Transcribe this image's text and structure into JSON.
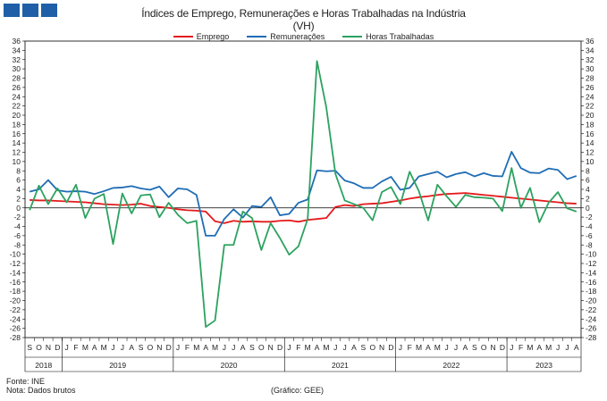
{
  "header": {
    "title_line1": "Índices de Emprego, Remunerações e Horas Trabalhadas na Indústria",
    "title_line2": "(VH)"
  },
  "footer": {
    "source": "Fonte: INE",
    "note": "Nota: Dados brutos",
    "credit": "(Gráfico: GEE)"
  },
  "chart_data": {
    "type": "line",
    "title": "Índices de Emprego, Remunerações e Horas Trabalhadas na Indústria (VH)",
    "xlabel": "",
    "ylabel": "",
    "ylim": [
      -28,
      36
    ],
    "yticks": [
      36,
      34,
      32,
      30,
      28,
      26,
      24,
      22,
      20,
      18,
      16,
      14,
      12,
      10,
      8,
      6,
      4,
      2,
      0,
      -2,
      -4,
      -6,
      -8,
      -10,
      -12,
      -14,
      -16,
      -18,
      -20,
      -22,
      -24,
      -26,
      -28
    ],
    "grid": false,
    "legend_position": "top",
    "x": [
      "S",
      "O",
      "N",
      "D",
      "J",
      "F",
      "M",
      "A",
      "M",
      "J",
      "J",
      "A",
      "S",
      "O",
      "N",
      "D",
      "J",
      "F",
      "M",
      "A",
      "M",
      "J",
      "J",
      "A",
      "S",
      "O",
      "N",
      "D",
      "J",
      "F",
      "M",
      "A",
      "M",
      "J",
      "J",
      "A",
      "S",
      "O",
      "N",
      "D",
      "J",
      "F",
      "M",
      "A",
      "M",
      "J",
      "J",
      "A",
      "S",
      "O",
      "N",
      "D",
      "J",
      "F",
      "M",
      "A",
      "M",
      "J",
      "J",
      "A"
    ],
    "years": [
      {
        "label": "2018",
        "start": 0,
        "end": 3
      },
      {
        "label": "2019",
        "start": 4,
        "end": 15
      },
      {
        "label": "2020",
        "start": 16,
        "end": 27
      },
      {
        "label": "2021",
        "start": 28,
        "end": 39
      },
      {
        "label": "2022",
        "start": 40,
        "end": 51
      },
      {
        "label": "2023",
        "start": 52,
        "end": 59
      }
    ],
    "series": [
      {
        "name": "Emprego",
        "color": "#e41a1c",
        "values": [
          1.7,
          1.6,
          1.6,
          1.5,
          1.4,
          1.3,
          1.2,
          1.0,
          0.8,
          0.7,
          0.6,
          0.7,
          0.9,
          0.4,
          0.2,
          0.0,
          -0.3,
          -0.5,
          -0.6,
          -0.8,
          -2.9,
          -3.3,
          -2.8,
          -3.0,
          -2.9,
          -3.0,
          -3.0,
          -2.8,
          -2.7,
          -3.0,
          -2.6,
          -2.4,
          -2.2,
          0.2,
          0.6,
          0.4,
          0.8,
          0.9,
          1.0,
          1.3,
          1.6,
          2.0,
          2.3,
          2.5,
          2.8,
          3.0,
          3.1,
          3.2,
          3.0,
          2.8,
          2.6,
          2.4,
          2.2,
          2.0,
          1.8,
          1.6,
          1.4,
          1.2,
          1.0,
          0.9
        ]
      },
      {
        "name": "Remunerações",
        "color": "#1f6db5",
        "values": [
          3.5,
          4.0,
          6.0,
          3.8,
          3.5,
          3.6,
          3.5,
          3.0,
          3.6,
          4.3,
          4.4,
          4.7,
          4.2,
          3.9,
          4.6,
          2.3,
          4.2,
          4.0,
          2.8,
          -6.0,
          -6.0,
          -2.4,
          -0.3,
          -2.1,
          0.4,
          0.2,
          2.3,
          -1.6,
          -1.3,
          1.1,
          1.8,
          8.1,
          7.9,
          8.0,
          5.9,
          5.3,
          4.3,
          4.3,
          5.7,
          6.7,
          3.9,
          4.3,
          6.8,
          7.3,
          7.8,
          6.6,
          7.3,
          7.7,
          6.8,
          7.5,
          6.9,
          6.8,
          12.1,
          8.6,
          7.6,
          7.5,
          8.5,
          8.2,
          6.2,
          6.9
        ]
      },
      {
        "name": "Horas Trabalhadas",
        "color": "#2ca25f",
        "values": [
          -0.5,
          4.8,
          0.8,
          4.2,
          1.2,
          5.0,
          -2.2,
          2.0,
          3.0,
          -7.8,
          3.1,
          -1.2,
          2.7,
          2.9,
          -2.0,
          1.1,
          -1.5,
          -3.3,
          -2.8,
          -25.7,
          -24.3,
          -8.0,
          -8.0,
          -0.8,
          -2.2,
          -9.1,
          -3.3,
          -6.5,
          -10.1,
          -8.3,
          -2.4,
          31.7,
          21.8,
          7.3,
          1.6,
          0.8,
          0.0,
          -2.7,
          3.4,
          4.5,
          0.8,
          7.8,
          3.6,
          -2.7,
          5.0,
          2.5,
          0.2,
          2.8,
          2.3,
          2.2,
          2.0,
          -0.7,
          8.6,
          0.0,
          4.3,
          -3.1,
          1.1,
          3.4,
          -0.1,
          -0.8
        ]
      }
    ]
  }
}
